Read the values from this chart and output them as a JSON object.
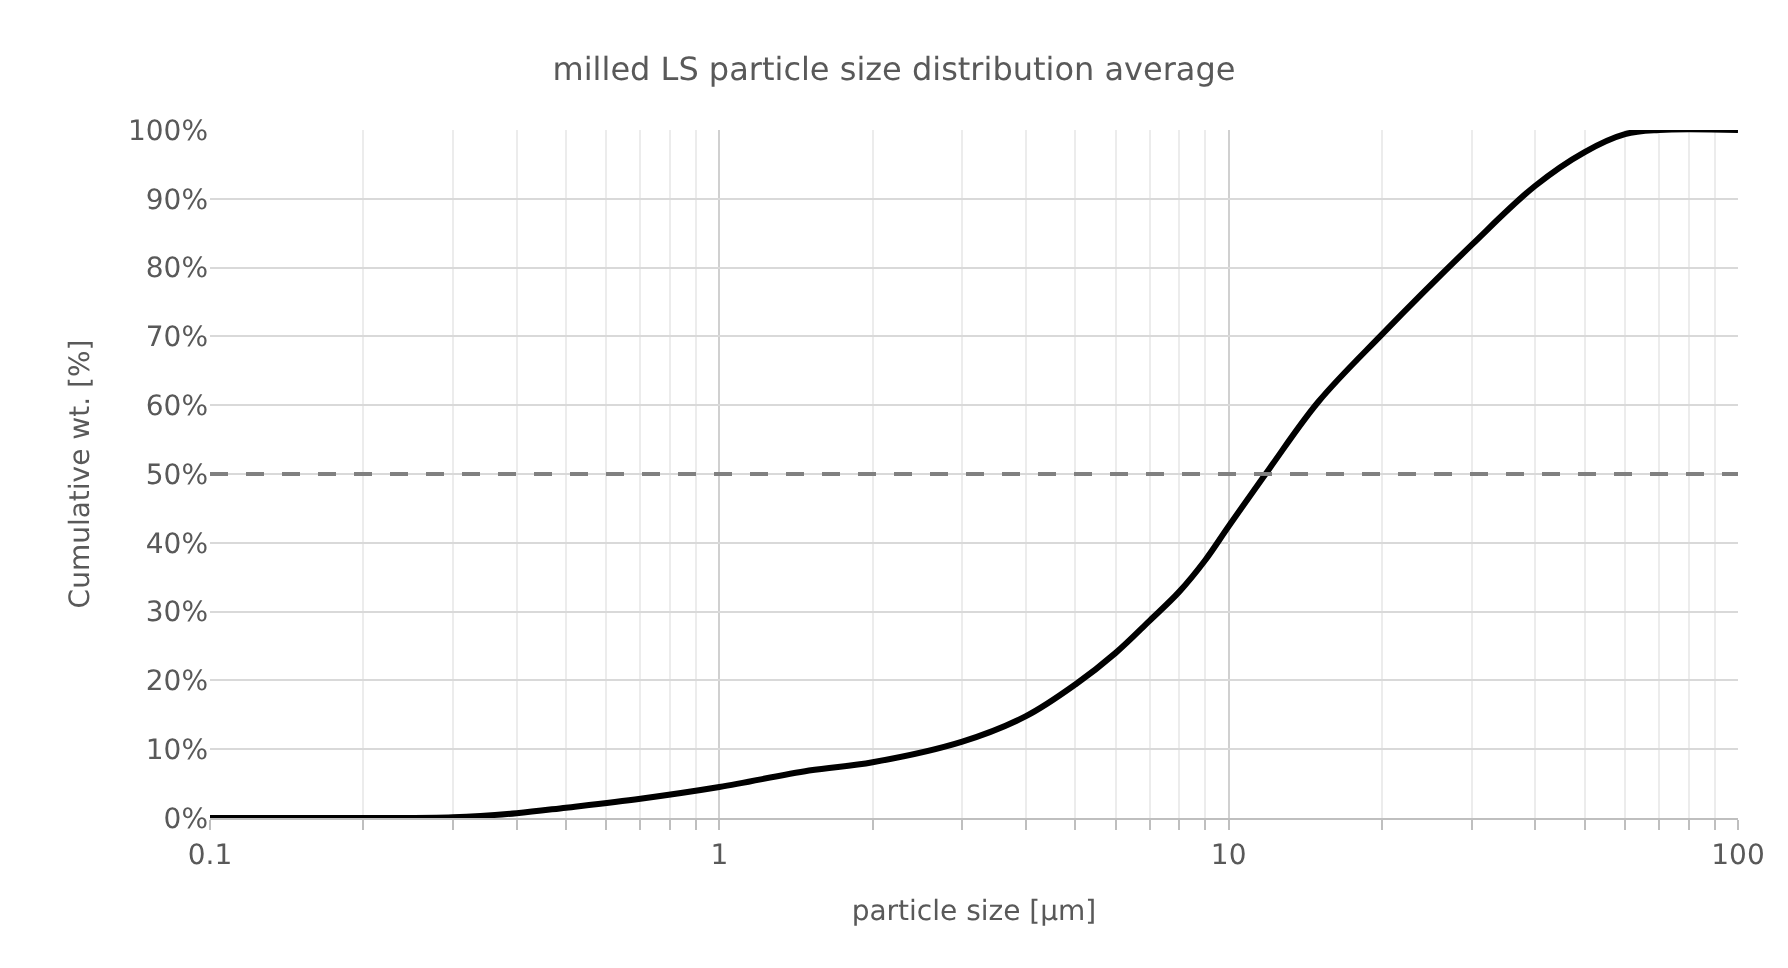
{
  "chart_data": {
    "type": "line",
    "title": "milled LS particle size distribution average",
    "xlabel": "particle size [µm]",
    "ylabel": "Cumulative wt. [%]",
    "log": "x",
    "grid": true,
    "marker": "none",
    "line_style": "solid",
    "xlim": [
      0.1,
      100
    ],
    "xticks": [
      0.1,
      1,
      10,
      100
    ],
    "ylim": [
      0,
      100
    ],
    "yticks": [
      {
        "value": 0,
        "label": "0%"
      },
      {
        "value": 10,
        "label": "10%"
      },
      {
        "value": 20,
        "label": "20%"
      },
      {
        "value": 30,
        "label": "30%"
      },
      {
        "value": 40,
        "label": "40%"
      },
      {
        "value": 50,
        "label": "50%"
      },
      {
        "value": 60,
        "label": "60%"
      },
      {
        "value": 70,
        "label": "70%"
      },
      {
        "value": 80,
        "label": "80%"
      },
      {
        "value": 90,
        "label": "90%"
      },
      {
        "value": 100,
        "label": "100%"
      }
    ],
    "x": [
      0.1,
      0.2,
      0.3,
      0.4,
      0.5,
      0.7,
      1,
      1.5,
      2,
      3,
      4,
      5,
      6,
      7,
      8,
      9,
      10,
      12,
      15,
      20,
      30,
      40,
      50,
      60,
      70,
      100
    ],
    "series": [
      {
        "color": "#000000",
        "values": [
          0,
          0,
          0.1,
          0.7,
          1.5,
          2.8,
          4.5,
          6.9,
          8.1,
          11.1,
          14.8,
          19.4,
          24,
          28.7,
          32.9,
          37.5,
          42.4,
          50.7,
          60.5,
          70.3,
          83.3,
          91.9,
          96.8,
          99.4,
          100,
          100
        ]
      }
    ],
    "ref_lines": [
      {
        "axis": "y",
        "value": 50,
        "color": "#808080",
        "line_style": "dashed"
      }
    ]
  }
}
